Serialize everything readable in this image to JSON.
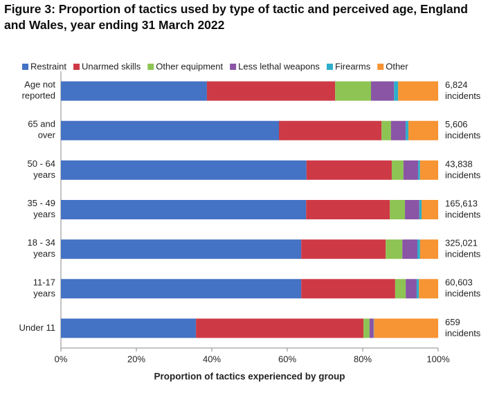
{
  "chart_data": {
    "type": "stacked-bar-horizontal",
    "title": "Figure 3: Proportion of tactics used by type of tactic and perceived age, England and Wales, year ending 31 March 2022",
    "x_label": "Proportion of tactics experienced by group",
    "categories": [
      "Age not reported",
      "65 and over",
      "50 - 64 years",
      "35 - 49 years",
      "18 - 34 years",
      "11-17 years",
      "Under 11"
    ],
    "annotations": [
      [
        "6,824",
        "incidents"
      ],
      [
        "5,606",
        "incidents"
      ],
      [
        "43,838",
        "incidents"
      ],
      [
        "165,613",
        "incidents"
      ],
      [
        "325,021",
        "incidents"
      ],
      [
        "60,603",
        "incidents"
      ],
      [
        "659",
        "incidents"
      ]
    ],
    "series": [
      {
        "name": "Restraint",
        "color": "#4472c4",
        "values": [
          38.7,
          57.8,
          65.1,
          65.0,
          63.7,
          63.7,
          35.8
        ]
      },
      {
        "name": "Unarmed skills",
        "color": "#cd3a46",
        "values": [
          34.0,
          27.2,
          22.6,
          22.2,
          22.4,
          24.9,
          44.4
        ]
      },
      {
        "name": "Other equipment",
        "color": "#8dc453",
        "values": [
          9.5,
          2.5,
          3.1,
          4.0,
          4.4,
          2.8,
          1.6
        ]
      },
      {
        "name": "Less lethal weapons",
        "color": "#8a55a5",
        "values": [
          6.1,
          3.9,
          3.9,
          3.8,
          4.0,
          2.9,
          1.1
        ]
      },
      {
        "name": "Firearms",
        "color": "#2eaecb",
        "values": [
          1.1,
          0.7,
          0.5,
          0.6,
          0.7,
          0.6,
          0.1
        ]
      },
      {
        "name": "Other",
        "color": "#f79433",
        "values": [
          10.6,
          7.9,
          4.8,
          4.4,
          4.8,
          5.1,
          17.0
        ]
      }
    ],
    "xlim": [
      0,
      100
    ],
    "xticks": [
      {
        "value": 0,
        "label": "0%"
      },
      {
        "value": 20,
        "label": "20%"
      },
      {
        "value": 40,
        "label": "40%"
      },
      {
        "value": 60,
        "label": "60%"
      },
      {
        "value": 80,
        "label": "80%"
      },
      {
        "value": 100,
        "label": "100%"
      }
    ],
    "legend": "top"
  }
}
